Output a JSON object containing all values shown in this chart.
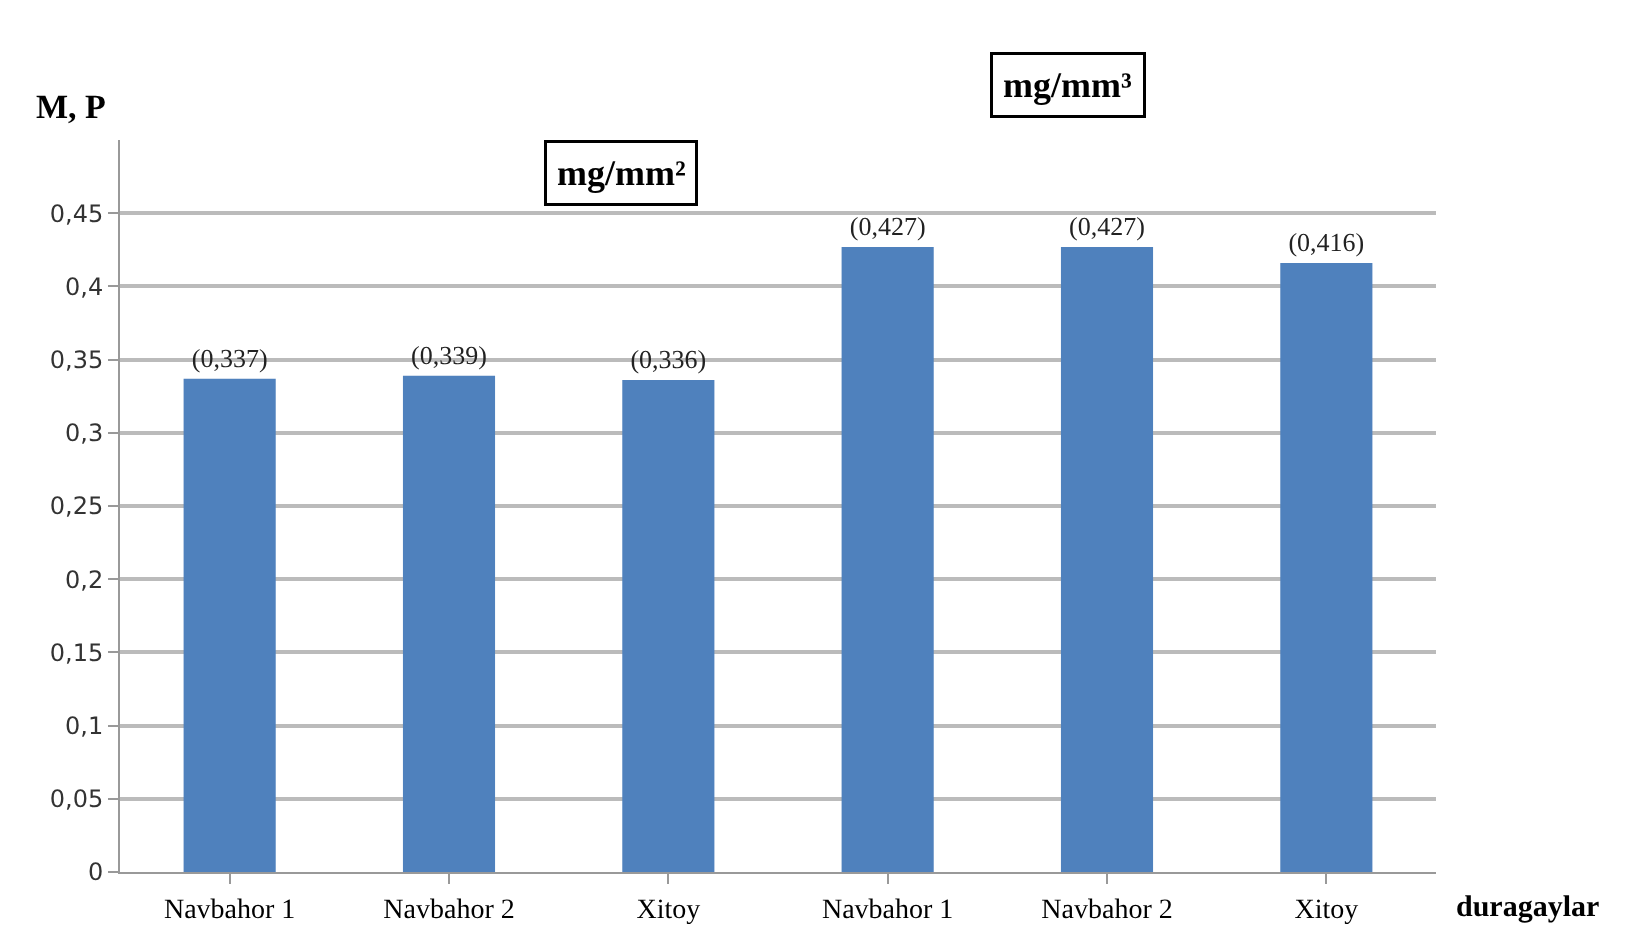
{
  "chart_data": {
    "type": "bar",
    "categories": [
      "Navbahor 1",
      "Navbahor 2",
      "Xitoy",
      "Navbahor 1",
      "Navbahor 2",
      "Xitoy"
    ],
    "values": [
      0.337,
      0.339,
      0.336,
      0.427,
      0.427,
      0.416
    ],
    "value_labels": [
      "(0,337)",
      "(0,339)",
      "(0,336)",
      "(0,427)",
      "(0,427)",
      "(0,416)"
    ],
    "color": "#4f81bd",
    "ylim": [
      0,
      0.5
    ],
    "yticks": [
      {
        "value": 0,
        "label": "0"
      },
      {
        "value": 0.05,
        "label": "0,05"
      },
      {
        "value": 0.1,
        "label": "0,1"
      },
      {
        "value": 0.15,
        "label": "0,15"
      },
      {
        "value": 0.2,
        "label": "0,2"
      },
      {
        "value": 0.25,
        "label": "0,25"
      },
      {
        "value": 0.3,
        "label": "0,3"
      },
      {
        "value": 0.35,
        "label": "0,35"
      },
      {
        "value": 0.4,
        "label": "0,4"
      },
      {
        "value": 0.45,
        "label": "0,45"
      }
    ],
    "grid": "y",
    "xlabel": "duragaylar",
    "ylabel": "M, P",
    "annotations": [
      "mg/mm²",
      "mg/mm³"
    ]
  }
}
